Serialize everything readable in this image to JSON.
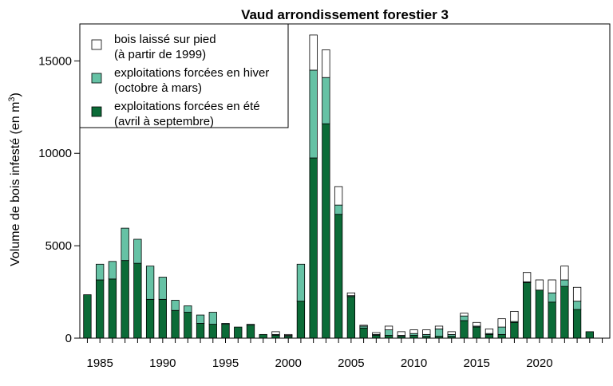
{
  "chart_data": {
    "type": "bar",
    "stacked": true,
    "title": "Vaud arrondissement forestier 3",
    "ylabel": "Volume de bois infesté (en m",
    "ylabel_sup": "3",
    "ylabel_close": ")",
    "xlabel": "",
    "ylim": [
      0,
      17000
    ],
    "xlim": [
      1983.4,
      2025.6
    ],
    "grid": false,
    "legend_position": "top-left",
    "y_ticks": [
      0,
      5000,
      10000,
      15000
    ],
    "y_tick_labels": [
      "0",
      "5000",
      "10000",
      "15000"
    ],
    "x_tick_labels": [
      "1985",
      "1990",
      "1995",
      "2000",
      "2005",
      "2010",
      "2015",
      "2020"
    ],
    "x_tick_values": [
      1985,
      1990,
      1995,
      2000,
      2005,
      2010,
      2015,
      2020
    ],
    "x_minor_ticks": [
      1984,
      1985,
      1986,
      1987,
      1988,
      1989,
      1990,
      1991,
      1992,
      1993,
      1994,
      1995,
      1996,
      1997,
      1998,
      1999,
      2000,
      2001,
      2002,
      2003,
      2004,
      2005,
      2006,
      2007,
      2008,
      2009,
      2010,
      2011,
      2012,
      2013,
      2014,
      2015,
      2016,
      2017,
      2018,
      2019,
      2020,
      2021,
      2022,
      2023,
      2024,
      2025
    ],
    "years": [
      1984,
      1985,
      1986,
      1987,
      1988,
      1989,
      1990,
      1991,
      1992,
      1993,
      1994,
      1995,
      1996,
      1997,
      1998,
      1999,
      2000,
      2001,
      2002,
      2003,
      2004,
      2005,
      2006,
      2007,
      2008,
      2009,
      2010,
      2011,
      2012,
      2013,
      2014,
      2015,
      2016,
      2017,
      2018,
      2019,
      2020,
      2021,
      2022,
      2023,
      2024
    ],
    "series": [
      {
        "name_line1": "exploitations forcées en été",
        "name_line2": "(avril à septembre)",
        "color": "#0b6b37",
        "values": [
          2350,
          3150,
          3200,
          4200,
          4050,
          2100,
          2100,
          1500,
          1400,
          800,
          750,
          750,
          600,
          700,
          200,
          150,
          100,
          2000,
          9750,
          11600,
          6700,
          2250,
          550,
          150,
          150,
          100,
          150,
          100,
          100,
          100,
          950,
          600,
          200,
          200,
          850,
          3000,
          2600,
          1950,
          2800,
          1550,
          350
        ]
      },
      {
        "name_line1": "exploitations forcées en hiver",
        "name_line2": "(octobre à mars)",
        "color": "#66c2a5",
        "values": [
          0,
          850,
          950,
          1750,
          1300,
          1800,
          1200,
          550,
          350,
          450,
          650,
          50,
          0,
          50,
          0,
          50,
          50,
          2000,
          4750,
          2500,
          500,
          50,
          100,
          50,
          300,
          50,
          100,
          100,
          400,
          100,
          250,
          50,
          50,
          400,
          50,
          50,
          0,
          500,
          350,
          450,
          0
        ]
      },
      {
        "name_line1": "bois laissé sur pied",
        "name_line2": "(à partir de 1999)",
        "color": "#ffffff",
        "values": [
          0,
          0,
          0,
          0,
          0,
          0,
          0,
          0,
          0,
          0,
          0,
          0,
          0,
          0,
          0,
          150,
          50,
          0,
          1900,
          1500,
          1000,
          150,
          50,
          100,
          200,
          200,
          200,
          250,
          150,
          150,
          150,
          200,
          250,
          450,
          550,
          500,
          550,
          700,
          750,
          750,
          0
        ]
      }
    ]
  }
}
